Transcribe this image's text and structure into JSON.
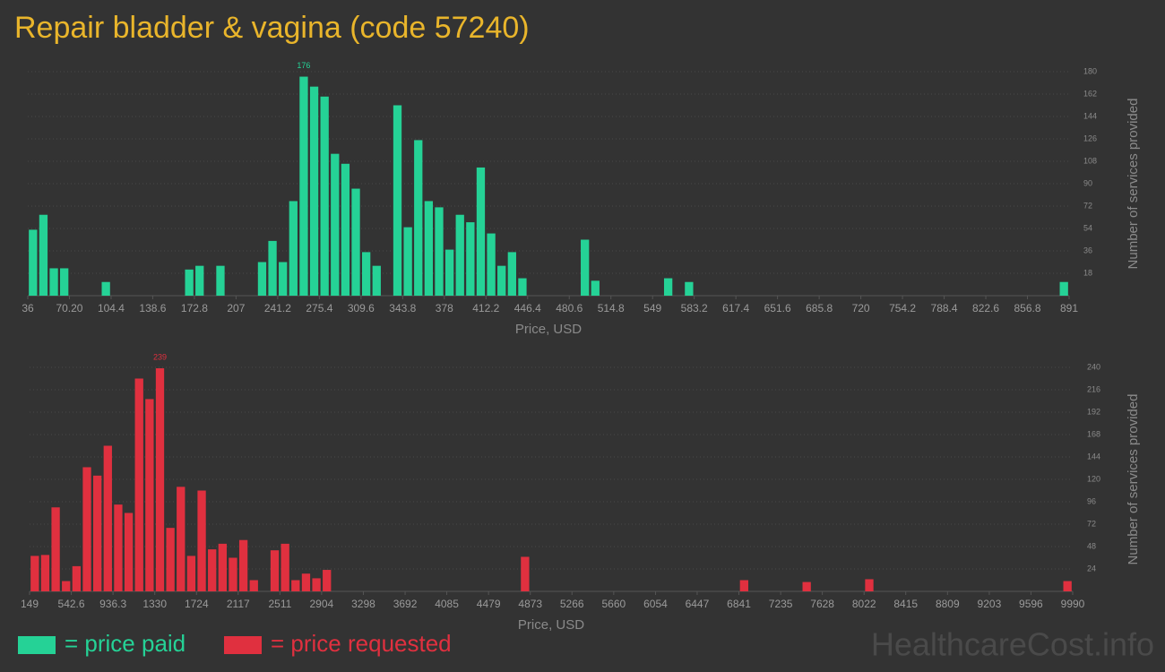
{
  "title": "Repair bladder & vagina (code 57240)",
  "watermark": "HealthcareCost.info",
  "chart_data": [
    {
      "type": "bar",
      "x_label": "Price, USD",
      "y_label": "Number of services provided",
      "grid": true,
      "peak_label": 176,
      "x": [
        36,
        44.55,
        53.1,
        61.65,
        95.85,
        164.25,
        172.8,
        189.9,
        224.1,
        232.65,
        241.2,
        249.75,
        258.3,
        266.85,
        275.4,
        283.95,
        292.5,
        301.05,
        309.6,
        318.15,
        335.25,
        343.8,
        352.35,
        360.9,
        369.45,
        378,
        386.55,
        395.1,
        403.65,
        412.2,
        420.75,
        429.3,
        437.85,
        489.15,
        497.7,
        557.55,
        574.65,
        882.45
      ],
      "series": [
        {
          "name": "= price paid",
          "color": "#25d296",
          "values": [
            53,
            65,
            22,
            22,
            11,
            21,
            24,
            24,
            27,
            44,
            27,
            76,
            176,
            168,
            160,
            114,
            106,
            86,
            35,
            24,
            153,
            55,
            125,
            76,
            71,
            37,
            65,
            59,
            103,
            50,
            24,
            35,
            14,
            45,
            12,
            14,
            11,
            11
          ]
        }
      ],
      "xlim": [
        36,
        891
      ],
      "xticks": [
        36,
        {
          "value": 70.2,
          "label": "70.20"
        },
        104.4,
        138.6,
        172.8,
        207,
        241.2,
        275.4,
        309.6,
        343.8,
        378,
        412.2,
        446.4,
        480.6,
        514.8,
        549,
        583.2,
        617.4,
        651.6,
        685.8,
        720,
        754.2,
        788.4,
        822.6,
        856.8,
        891
      ],
      "ylim": [
        0,
        180
      ],
      "yticks": [
        18,
        36,
        54,
        72,
        90,
        108,
        126,
        144,
        162,
        180
      ]
    },
    {
      "type": "bar",
      "x_label": "Price, USD",
      "y_label": "Number of services provided",
      "grid": true,
      "peak_label": 239,
      "x": [
        149,
        247.4,
        345.8,
        444.2,
        542.6,
        641.1,
        739.5,
        837.9,
        936.3,
        1034.7,
        1133.1,
        1231.5,
        1330,
        1428.3,
        1526.7,
        1625.2,
        1723.6,
        1822,
        1920.4,
        2018.8,
        2117.2,
        2215.6,
        2412.4,
        2510.8,
        2609.3,
        2707.7,
        2806.1,
        2904.5,
        4774.3,
        6840.9,
        7431.3,
        8021.8,
        9891.6
      ],
      "series": [
        {
          "name": "= price requested",
          "color": "#e0303f",
          "values": [
            38,
            39,
            90,
            11,
            27,
            133,
            124,
            156,
            93,
            84,
            228,
            206,
            239,
            68,
            112,
            38,
            108,
            45,
            51,
            36,
            55,
            12,
            44,
            51,
            12,
            19,
            14,
            23,
            37,
            12,
            10,
            13,
            11
          ]
        }
      ],
      "xlim": [
        149,
        9990
      ],
      "xticks": [
        149,
        542.6,
        936.3,
        1330,
        1724,
        2117,
        2511,
        2904,
        3298,
        3692,
        4085,
        4479,
        4873,
        5266,
        5660,
        6054,
        6447,
        6841,
        7235,
        7628,
        8022,
        8415,
        8809,
        9203,
        9596,
        9990
      ],
      "ylim": [
        0,
        240
      ],
      "yticks": [
        24,
        48,
        72,
        96,
        120,
        144,
        168,
        192,
        216,
        240
      ]
    }
  ]
}
